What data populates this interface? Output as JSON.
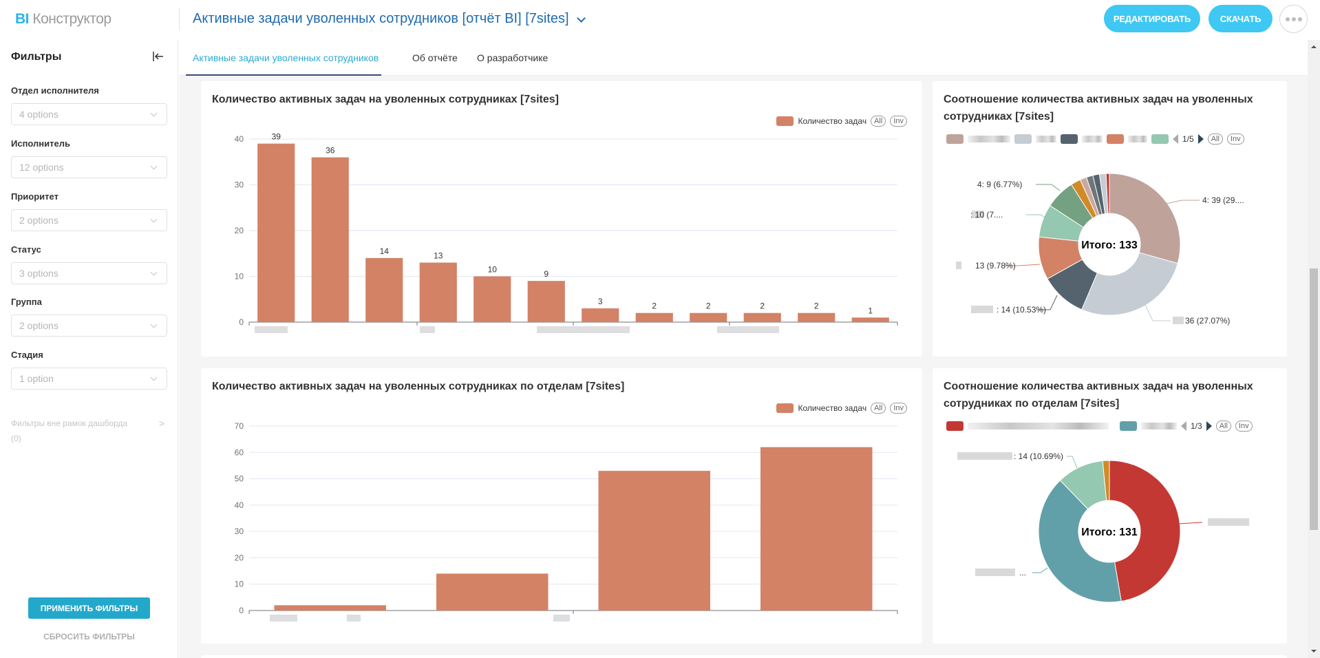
{
  "header": {
    "logo_bi": "BI",
    "logo_text": "Конструктор",
    "report_title": "Активные задачи уволенных сотрудников [отчёт BI] [7sites]",
    "edit_label": "РЕДАКТИРОВАТЬ",
    "download_label": "СКАЧАТЬ"
  },
  "sidebar": {
    "title": "Фильтры",
    "filters": [
      {
        "label": "Отдел исполнителя",
        "value": "4 options"
      },
      {
        "label": "Исполнитель",
        "value": "12 options"
      },
      {
        "label": "Приоритет",
        "value": "2 options"
      },
      {
        "label": "Статус",
        "value": "3 options"
      },
      {
        "label": "Группа",
        "value": "2 options"
      },
      {
        "label": "Стадия",
        "value": "1 option"
      }
    ],
    "outside_filters_label": "Фильтры вне рамок дашборда",
    "outside_filters_count": "(0)",
    "apply_label": "ПРИМЕНИТЬ ФИЛЬТРЫ",
    "reset_label": "СБРОСИТЬ ФИЛЬТРЫ"
  },
  "tabs": [
    {
      "label": "Активные задачи уволенных сотрудников",
      "active": true
    },
    {
      "label": "Об отчёте",
      "active": false
    },
    {
      "label": "О разработчике",
      "active": false
    }
  ],
  "legend_buttons": {
    "all": "All",
    "inv": "Inv"
  },
  "colors": {
    "accent": "#3ec8f3",
    "apply": "#22a8cb",
    "bar": "#d38266",
    "title": "#1f6bb0"
  },
  "chart_data": [
    {
      "type": "bar",
      "title": "Количество активных задач на уволенных сотрудниках [7sites]",
      "legend": "Количество задач",
      "legend_position": "top-right",
      "categories": [
        "",
        "",
        "",
        "",
        "",
        "",
        "",
        "",
        "",
        "",
        "",
        ""
      ],
      "values": [
        39,
        36,
        14,
        13,
        10,
        9,
        3,
        2,
        2,
        2,
        2,
        1
      ],
      "show_labels": true,
      "ylim": [
        0,
        40
      ],
      "yticks": [
        0,
        10,
        20,
        30,
        40
      ],
      "grid": true,
      "color": "#d38266"
    },
    {
      "type": "pie",
      "title": "Соотношение количества активных задач на уволенных сотрудниках [7sites]",
      "center_label": "Итого: 133",
      "legend_page": "1/5",
      "slices": [
        {
          "value": 39,
          "label": "4: 39 (29....",
          "color": "#bfa39a"
        },
        {
          "value": 36,
          "label": "36 (27.07%)",
          "color": "#c5ccd3"
        },
        {
          "value": 14,
          "label": ": 14 (10.53%)",
          "color": "#54636d"
        },
        {
          "value": 13,
          "label": "13 (9.78%)",
          "color": "#d38266"
        },
        {
          "value": 10,
          "label": ": 10 (7....",
          "color": "#94c8b0"
        },
        {
          "value": 9,
          "label": "4: 9 (6.77%)",
          "color": "#73a181"
        },
        {
          "value": 3,
          "label": "",
          "color": "#d18a27"
        },
        {
          "value": 2,
          "label": "",
          "color": "#c9aaa0"
        },
        {
          "value": 2,
          "label": "",
          "color": "#707579"
        },
        {
          "value": 2,
          "label": "",
          "color": "#54636d"
        },
        {
          "value": 2,
          "label": "",
          "color": "#c5ccd3"
        },
        {
          "value": 1,
          "label": "",
          "color": "#c43834"
        }
      ],
      "legend_colors": [
        "#bfa39a",
        "#c5ccd3",
        "#54636d",
        "#d38266",
        "#94c8b0"
      ]
    },
    {
      "type": "bar",
      "title": "Количество активных задач на уволенных сотрудниках по отделам [7sites]",
      "legend": "Количество задач",
      "legend_position": "top-right",
      "categories": [
        "",
        "",
        "",
        ""
      ],
      "values": [
        2,
        14,
        53,
        62
      ],
      "show_labels": false,
      "ylim": [
        0,
        70
      ],
      "yticks": [
        0,
        10,
        20,
        30,
        40,
        50,
        60,
        70
      ],
      "grid": true,
      "color": "#d38266"
    },
    {
      "type": "pie",
      "title": "Соотношение количества активных задач на уволенных сотрудниках по отделам [7sites]",
      "center_label": "Итого: 131",
      "legend_page": "1/3",
      "slices": [
        {
          "value": 62,
          "label": "",
          "color": "#c43834"
        },
        {
          "value": 53,
          "label": "...",
          "color": "#62a0a9"
        },
        {
          "value": 14,
          "label": ": 14 (10.69%)",
          "color": "#94c8b0"
        },
        {
          "value": 2,
          "label": "",
          "color": "#d18a27"
        }
      ],
      "legend_colors": [
        "#c43834",
        "#62a0a9"
      ]
    }
  ]
}
